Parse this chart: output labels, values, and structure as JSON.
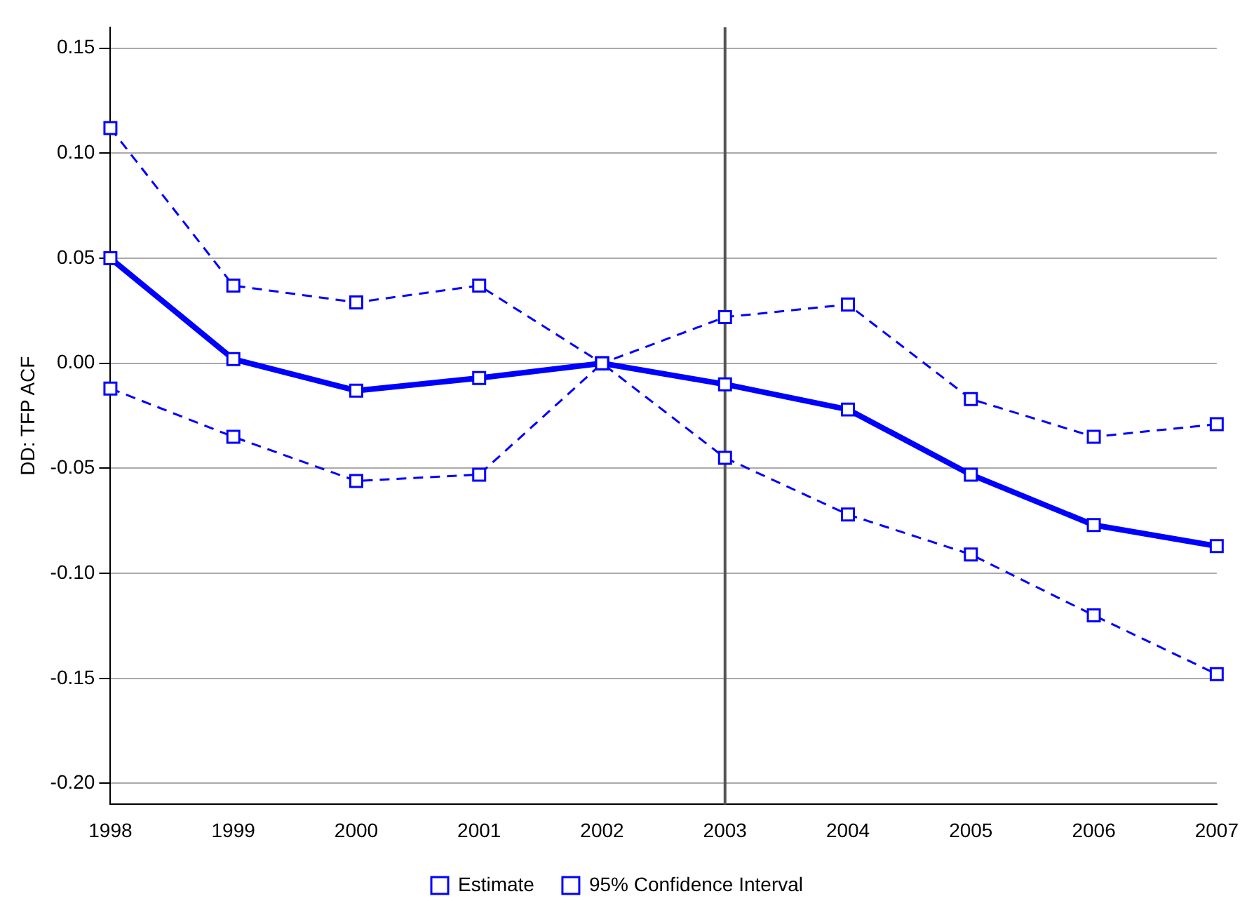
{
  "chart_data": {
    "type": "line",
    "ylabel": "DD: TFP ACF",
    "categories": [
      "1998",
      "1999",
      "2000",
      "2001",
      "2002",
      "2003",
      "2004",
      "2005",
      "2006",
      "2007"
    ],
    "series": [
      {
        "name": "Estimate",
        "color": "#0000ff",
        "line_style": "solid",
        "values": [
          0.05,
          0.002,
          -0.013,
          -0.007,
          0.0,
          -0.01,
          -0.022,
          -0.053,
          -0.077,
          -0.087
        ]
      },
      {
        "name": "95% Confidence Interval",
        "color": "#0000ff",
        "line_style": "dashed",
        "values": [
          0.112,
          0.037,
          0.029,
          0.037,
          0.0,
          0.022,
          0.028,
          -0.017,
          -0.035,
          -0.029
        ]
      },
      {
        "color": "#0000ff",
        "line_style": "dashed",
        "values": [
          -0.012,
          -0.035,
          -0.056,
          -0.053,
          0.0,
          -0.045,
          -0.072,
          -0.091,
          -0.12,
          -0.148
        ]
      }
    ],
    "ylim": [
      -0.21,
      0.16
    ],
    "yticks": [
      {
        "value": 0.15,
        "label": "0.15"
      },
      {
        "value": 0.1,
        "label": "0.10"
      },
      {
        "value": 0.05,
        "label": "0.05"
      },
      {
        "value": 0,
        "label": "0.00"
      },
      {
        "value": -0.05,
        "label": "-0.05"
      },
      {
        "value": -0.1,
        "label": "-0.10"
      },
      {
        "value": -0.15,
        "label": "-0.15"
      },
      {
        "value": -0.2,
        "label": "-0.20"
      }
    ],
    "ref_lines": [
      {
        "axis": "x",
        "value": "2003",
        "color": "#555555"
      }
    ],
    "grid": "y",
    "legend": "bottom",
    "marker": "square"
  }
}
